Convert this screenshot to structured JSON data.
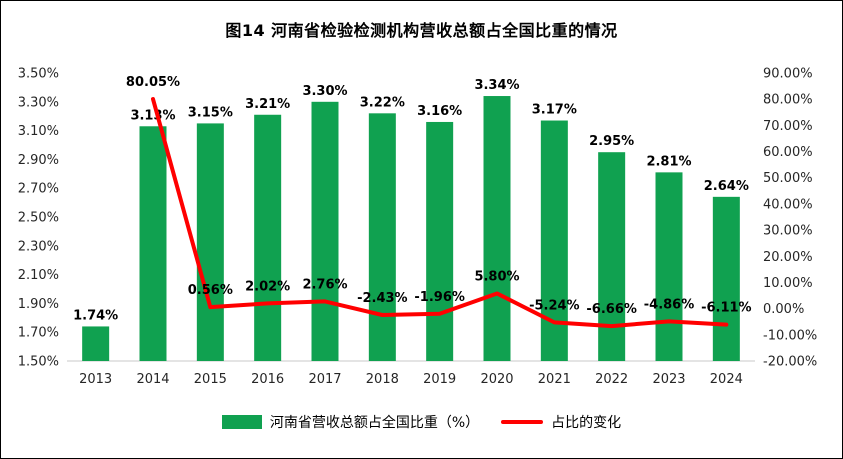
{
  "chart_data": {
    "type": "combo",
    "title": "图14  河南省检验检测机构营收总额占全国比重的情况",
    "categories": [
      "2013",
      "2014",
      "2015",
      "2016",
      "2017",
      "2018",
      "2019",
      "2020",
      "2021",
      "2022",
      "2023",
      "2024"
    ],
    "series": [
      {
        "name": "河南省营收总额占全国比重（%）",
        "type": "bar",
        "axis": "left",
        "color": "#10A150",
        "values": [
          1.74,
          3.13,
          3.15,
          3.21,
          3.3,
          3.22,
          3.16,
          3.34,
          3.17,
          2.95,
          2.81,
          2.64
        ],
        "labels": [
          "1.74%",
          "3.13%",
          "3.15%",
          "3.21%",
          "3.30%",
          "3.22%",
          "3.16%",
          "3.34%",
          "3.17%",
          "2.95%",
          "2.81%",
          "2.64%"
        ]
      },
      {
        "name": "占比的变化",
        "type": "line",
        "axis": "right",
        "color": "#FF0000",
        "values": [
          null,
          80.05,
          0.56,
          2.02,
          2.76,
          -2.43,
          -1.96,
          5.8,
          -5.24,
          -6.66,
          -4.86,
          -6.11
        ],
        "labels": [
          "",
          "80.05%",
          "0.56%",
          "2.02%",
          "2.76%",
          "-2.43%",
          "-1.96%",
          "5.80%",
          "-5.24%",
          "-6.66%",
          "-4.86%",
          "-6.11%"
        ]
      }
    ],
    "left_axis": {
      "min": 1.5,
      "max": 3.5,
      "step": 0.2,
      "tick_labels": [
        "3.50%",
        "3.30%",
        "3.10%",
        "2.90%",
        "2.70%",
        "2.50%",
        "2.30%",
        "2.10%",
        "1.90%",
        "1.70%",
        "1.50%"
      ]
    },
    "right_axis": {
      "min": -20,
      "max": 90,
      "step": 10,
      "tick_labels": [
        "90.00%",
        "80.00%",
        "70.00%",
        "60.00%",
        "50.00%",
        "40.00%",
        "30.00%",
        "20.00%",
        "10.00%",
        "0.00%",
        "-10.00%",
        "-20.00%"
      ]
    },
    "grid": "off",
    "legend_position": "bottom"
  }
}
